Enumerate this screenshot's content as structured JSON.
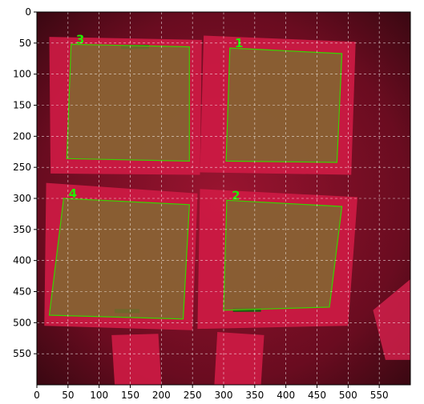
{
  "chart_data": {
    "type": "image",
    "xlim": [
      0,
      600
    ],
    "ylim": [
      600,
      0
    ],
    "grid": true,
    "x_ticks": [
      0,
      50,
      100,
      150,
      200,
      250,
      300,
      350,
      400,
      450,
      500,
      550
    ],
    "y_ticks": [
      0,
      50,
      100,
      150,
      200,
      250,
      300,
      350,
      400,
      450,
      500,
      550
    ],
    "x_tick_labels": [
      "0",
      "50",
      "100",
      "150",
      "200",
      "250",
      "300",
      "350",
      "400",
      "450",
      "500",
      "550"
    ],
    "y_tick_labels": [
      "0",
      "50",
      "100",
      "150",
      "200",
      "250",
      "300",
      "350",
      "400",
      "450",
      "500",
      "550"
    ],
    "polygons": [
      {
        "label": "1",
        "points": [
          [
            310,
            58
          ],
          [
            490,
            67
          ],
          [
            482,
            242
          ],
          [
            304,
            240
          ]
        ]
      },
      {
        "label": "2",
        "points": [
          [
            305,
            303
          ],
          [
            490,
            313
          ],
          [
            470,
            475
          ],
          [
            300,
            480
          ]
        ]
      },
      {
        "label": "3",
        "points": [
          [
            55,
            52
          ],
          [
            245,
            56
          ],
          [
            245,
            240
          ],
          [
            48,
            236
          ]
        ]
      },
      {
        "label": "4",
        "points": [
          [
            43,
            300
          ],
          [
            245,
            310
          ],
          [
            235,
            494
          ],
          [
            20,
            488
          ]
        ]
      }
    ],
    "colors": {
      "background": "#5a0b1a",
      "panel": "#cf1b45",
      "overlay": "#7e6a30",
      "outline": "#39d300",
      "label": "#22ee00"
    }
  }
}
